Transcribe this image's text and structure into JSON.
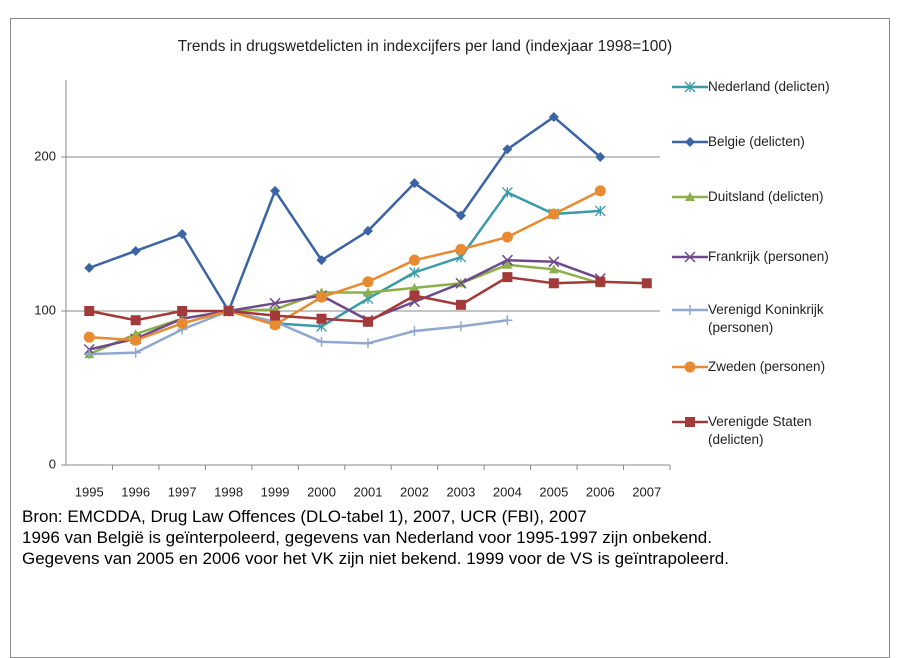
{
  "chart_data": {
    "type": "line",
    "title": "Trends in drugswetdelicten in indexcijfers per land (indexjaar 1998=100)",
    "categories": [
      "1995",
      "1996",
      "1997",
      "1998",
      "1999",
      "2000",
      "2001",
      "2002",
      "2003",
      "2004",
      "2005",
      "2006",
      "2007"
    ],
    "ylim": [
      0,
      250
    ],
    "yticks": [
      0,
      100,
      200
    ],
    "grid": true,
    "series": [
      {
        "name": "Nederland (delicten)",
        "color": "#3a9aa8",
        "marker": "asterisk",
        "values": [
          null,
          null,
          null,
          100,
          92,
          90,
          108,
          125,
          135,
          177,
          163,
          165,
          null
        ]
      },
      {
        "name": "Belgie (delicten)",
        "color": "#3b64a4",
        "marker": "diamond",
        "values": [
          128,
          139,
          150,
          100,
          178,
          133,
          152,
          183,
          162,
          205,
          226,
          200,
          null
        ]
      },
      {
        "name": "Duitsland (delicten)",
        "color": "#8bb04a",
        "marker": "triangle",
        "values": [
          72,
          85,
          95,
          100,
          101,
          112,
          112,
          115,
          118,
          130,
          127,
          118,
          null
        ]
      },
      {
        "name": "Frankrijk (personen)",
        "color": "#6e4a8c",
        "marker": "x",
        "values": [
          75,
          82,
          95,
          100,
          105,
          110,
          94,
          106,
          118,
          133,
          132,
          121,
          null
        ]
      },
      {
        "name": "Verenigd Koninkrijk (personen)",
        "color": "#90a8d0",
        "marker": "plus",
        "values": [
          72,
          73,
          88,
          100,
          93,
          80,
          79,
          87,
          90,
          94,
          null,
          null,
          null
        ]
      },
      {
        "name": "Zweden (personen)",
        "color": "#e88a30",
        "marker": "circle",
        "values": [
          83,
          81,
          92,
          100,
          91,
          109,
          119,
          133,
          140,
          148,
          163,
          178,
          null
        ]
      },
      {
        "name": "Verenigde Staten (delicten)",
        "color": "#a33a3a",
        "marker": "square",
        "values": [
          100,
          94,
          100,
          100,
          97,
          95,
          93,
          110,
          104,
          122,
          118,
          119,
          118
        ]
      }
    ]
  },
  "notes": [
    "Bron: EMCDDA, Drug Law Offences (DLO-tabel 1), 2007, UCR (FBI), 2007",
    "1996 van België is geïnterpoleerd, gegevens van Nederland voor 1995-1997 zijn onbekend.",
    "Gegevens van 2005 en 2006 voor het VK zijn niet bekend. 1999 voor de VS is geïntrapoleerd."
  ]
}
